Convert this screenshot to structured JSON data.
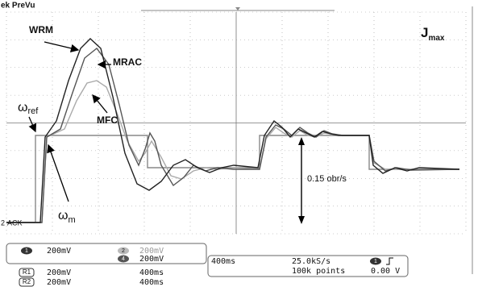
{
  "header": {
    "brand": "ek PreVu"
  },
  "annotations": {
    "wrm": "WRM",
    "mrac": "MRAC",
    "mfc": "MFC",
    "omega_ref": {
      "symbol": "ω",
      "subscript": "ref"
    },
    "omega_m": {
      "symbol": "ω",
      "subscript": "m"
    },
    "j_max": {
      "symbol": "J",
      "subscript": "max"
    },
    "amplitude": "0.15 obr/s"
  },
  "markers": {
    "channel": "2",
    "ack": "ACK"
  },
  "channels": [
    {
      "id": "1",
      "scale": "200mV"
    },
    {
      "id": "2",
      "scale": "200mV"
    },
    {
      "id": "4",
      "scale": "200mV"
    }
  ],
  "references": [
    {
      "id": "R1",
      "scale": "200mV",
      "time": "400ms"
    },
    {
      "id": "R2",
      "scale": "200mV",
      "time": "400ms"
    }
  ],
  "acquisition": {
    "timebase": "400ms",
    "sample_rate": "25.0kS/s",
    "record_length": "100k points",
    "trigger_channel": "1",
    "trigger_level": "0.00 V"
  }
}
